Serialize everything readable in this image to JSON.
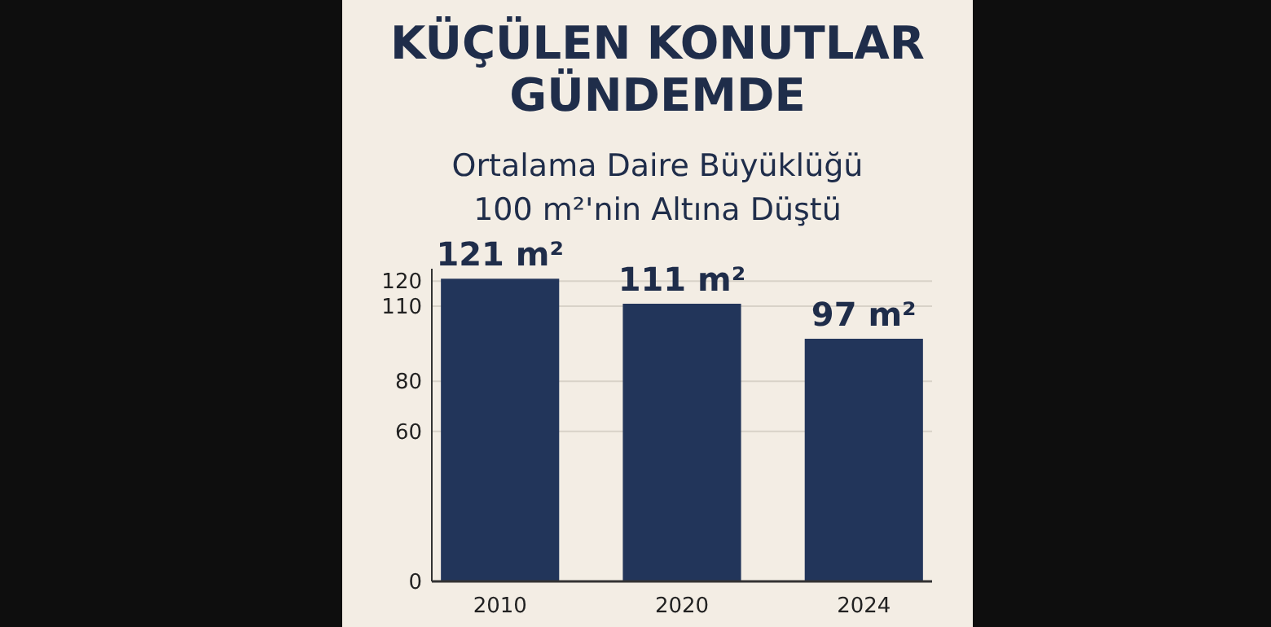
{
  "chart_data": {
    "type": "bar",
    "title": "KÜÇÜLEN KONUTLAR GÜNDEMDE",
    "subtitle": "Ortalama Daire Büyüklüğü 100 m²'nin Altına Düştü",
    "categories": [
      "2010",
      "2020",
      "2024"
    ],
    "values": [
      121,
      111,
      97
    ],
    "value_labels": [
      "121 m²",
      "111 m²",
      "97 m²"
    ],
    "color": "#22355a",
    "ylim": [
      0,
      125
    ],
    "yticks": [
      0,
      60,
      80,
      110,
      120
    ],
    "grid": "y"
  }
}
